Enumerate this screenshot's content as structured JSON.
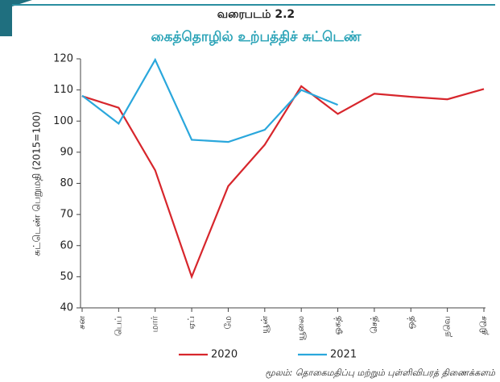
{
  "chart_data": {
    "type": "line",
    "label": "வரைபடம் 2.2",
    "title": "கைத்தொழில் உற்பத்திச் சுட்டெண்",
    "y_label": "சுட்டெண் பெறுமதி   (2015=100)",
    "categories": [
      "சன",
      "பெப்",
      "மார்",
      "ஏப்",
      "மே",
      "யூன்",
      "யூலை",
      "ஓகத்",
      "செத்",
      "ஒத்",
      "நவெ",
      "திசெ"
    ],
    "series": [
      {
        "name": "2020",
        "color": "#d7262c",
        "values": [
          108,
          104.3,
          84.2,
          50,
          79.1,
          92.4,
          111.2,
          102.3,
          108.8,
          107.8,
          107,
          110.3
        ]
      },
      {
        "name": "2021",
        "color": "#2aa7dc",
        "values": [
          108.2,
          99.2,
          119.7,
          94,
          93.3,
          97.2,
          110,
          105.2,
          null,
          null,
          null,
          null
        ]
      }
    ],
    "ylim": [
      40,
      120
    ],
    "yticks": [
      40,
      50,
      60,
      70,
      80,
      90,
      100,
      110,
      120
    ],
    "grid": false,
    "source": "மூலம்: தொகைமதிப்பு மற்றும் புள்ளிவிபரத் திணைக்களம்"
  }
}
